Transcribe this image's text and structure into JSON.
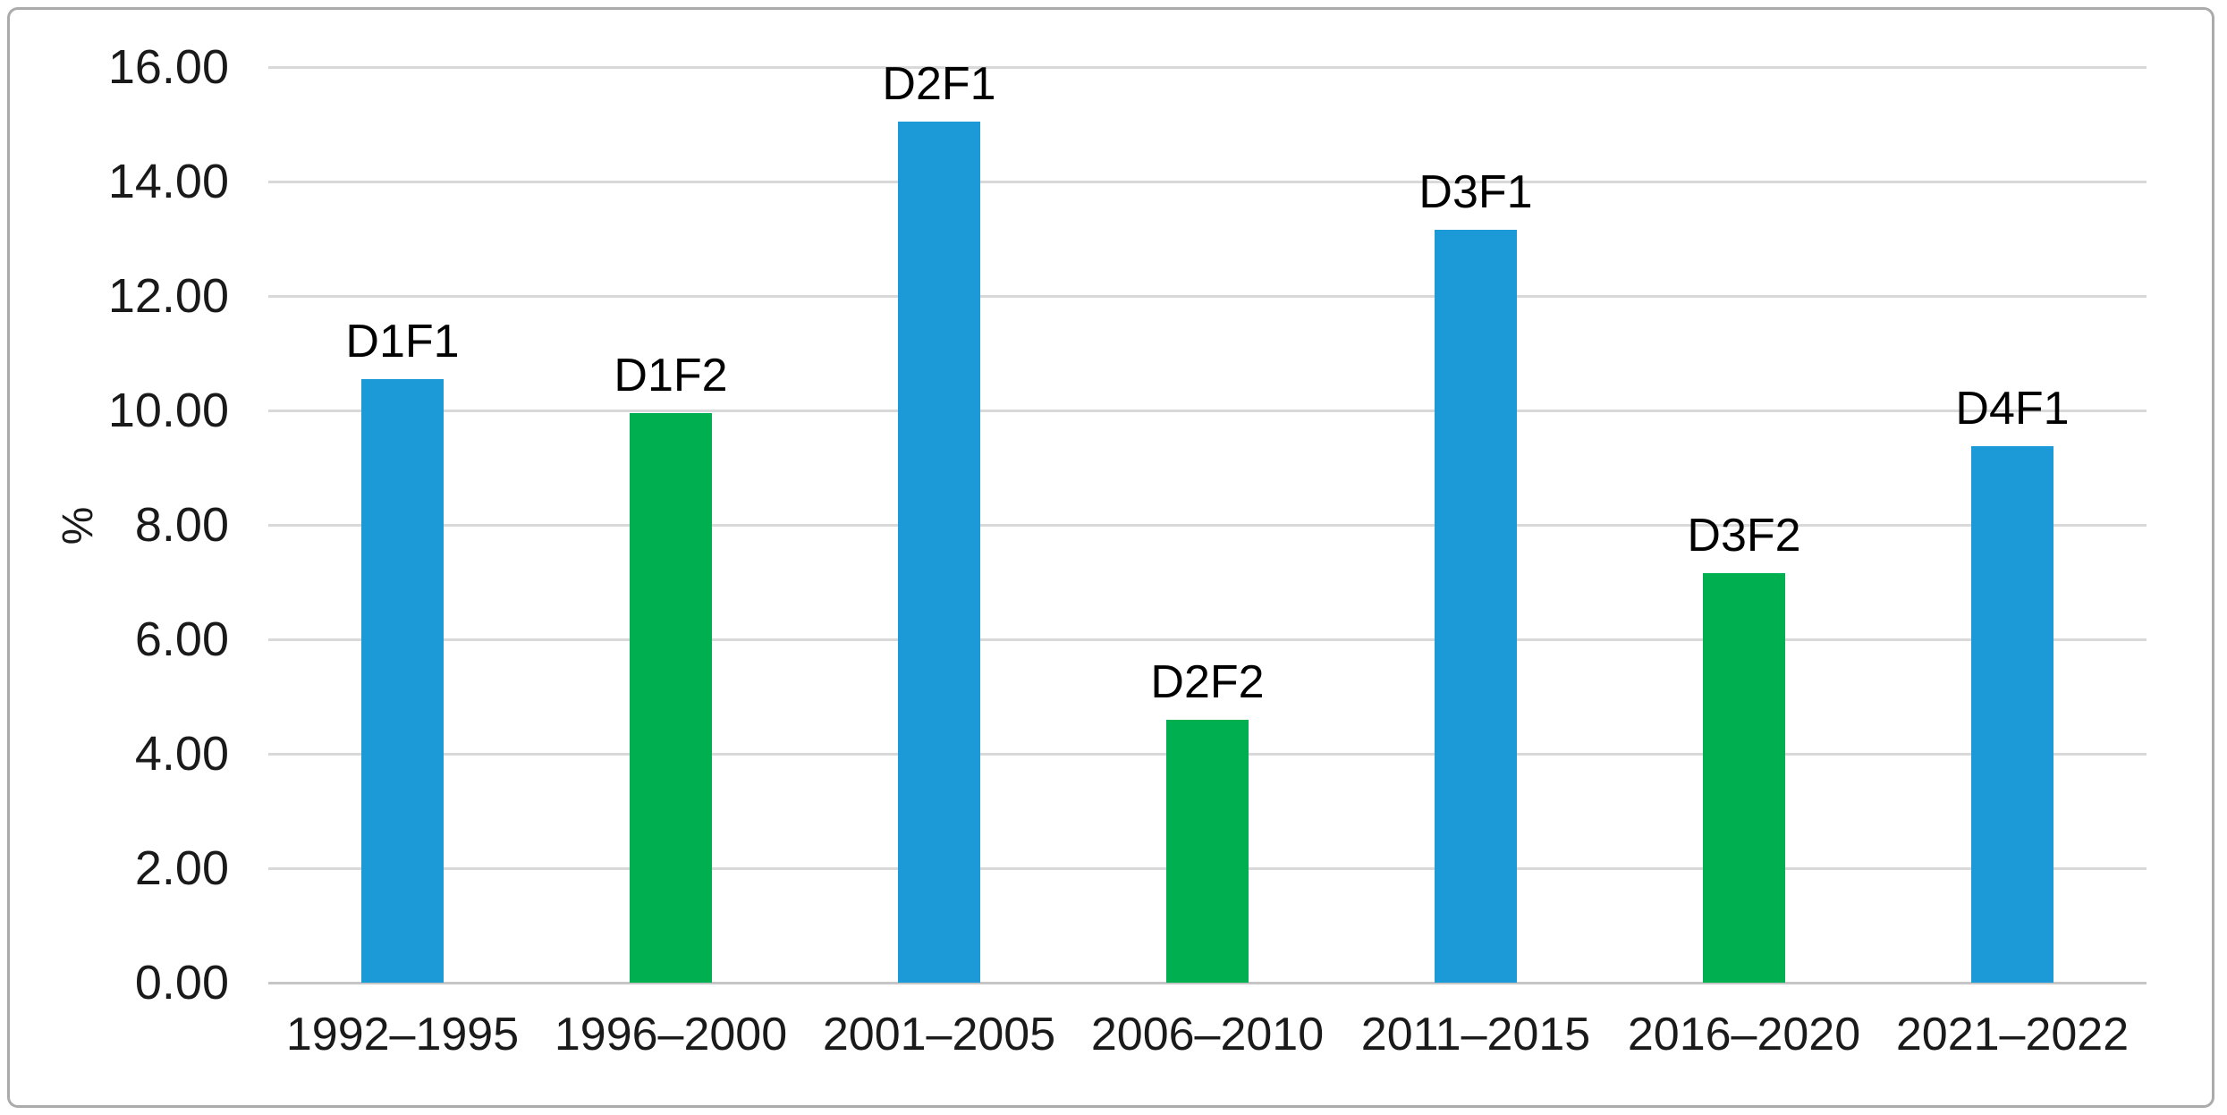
{
  "chart_data": {
    "type": "bar",
    "title": "",
    "xlabel": "",
    "ylabel": "%",
    "ylim": [
      0,
      16
    ],
    "ytick_step": 2,
    "ytick_labels": [
      "0.00",
      "2.00",
      "4.00",
      "6.00",
      "8.00",
      "10.00",
      "12.00",
      "14.00",
      "16.00"
    ],
    "grid": true,
    "legend_position": "none",
    "categories": [
      "1992–1995",
      "1996–2000",
      "2001–2005",
      "2006–2010",
      "2011–2015",
      "2016–2020",
      "2021–2022"
    ],
    "values": [
      10.55,
      9.95,
      15.05,
      4.6,
      13.15,
      7.15,
      9.38
    ],
    "bar_labels": [
      "D1F1",
      "D1F2",
      "D2F1",
      "D2F2",
      "D3F1",
      "D3F2",
      "D4F1"
    ],
    "bar_colors": [
      "#1B9AD7",
      "#00B050",
      "#1B9AD7",
      "#00B050",
      "#1B9AD7",
      "#00B050",
      "#1B9AD7"
    ],
    "colors": {
      "blue_series": "#1B9AD7",
      "green_series": "#00B050",
      "gridline": "#D9D9D9",
      "axis_line": "#C6C6C6",
      "frame_border": "#ABABAB",
      "text": "#1A1A1A",
      "background": "#FFFFFF"
    }
  }
}
